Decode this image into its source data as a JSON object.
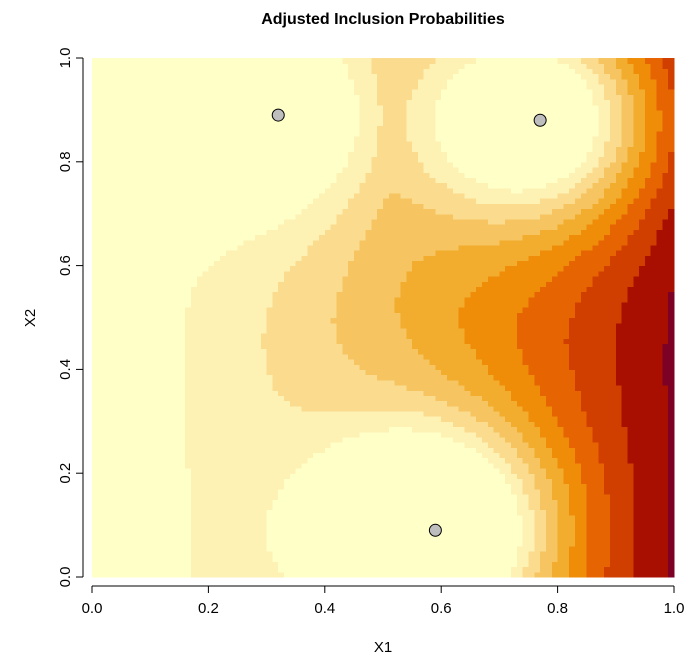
{
  "chart_data": {
    "type": "heatmap",
    "title": "Adjusted Inclusion Probabilities",
    "xlabel": "X1",
    "ylabel": "X2",
    "xlim": [
      0,
      1
    ],
    "ylim": [
      0,
      1
    ],
    "x_ticks": [
      "0.0",
      "0.2",
      "0.4",
      "0.6",
      "0.8",
      "1.0"
    ],
    "y_ticks": [
      "0.0",
      "0.2",
      "0.4",
      "0.6",
      "0.8",
      "1.0"
    ],
    "grid": false,
    "palette": [
      "#FFFFC8",
      "#FEF1B4",
      "#FBDB8E",
      "#F6C460",
      "#F2AC2E",
      "#EF8D09",
      "#E76402",
      "#D03F00",
      "#A80F00",
      "#7D0025"
    ],
    "points": [
      {
        "x": 0.32,
        "y": 0.89
      },
      {
        "x": 0.77,
        "y": 0.88
      },
      {
        "x": 0.59,
        "y": 0.09
      }
    ],
    "point_color": "#BEBEBE"
  }
}
